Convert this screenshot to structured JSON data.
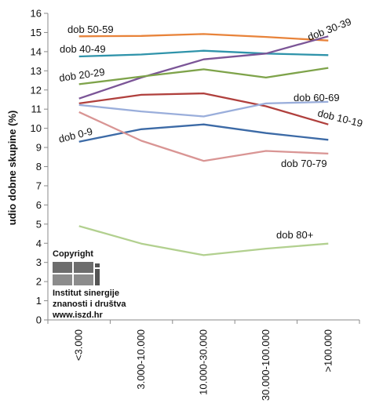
{
  "chart_data": {
    "type": "line",
    "categories": [
      "<3.000",
      "3.000-10.000",
      "10.000-30.000",
      "30.000-100.000",
      ">100.000"
    ],
    "ylabel": "udio dobne skupine (%)",
    "ylim": [
      0,
      16
    ],
    "yticks": [
      0,
      1,
      2,
      3,
      4,
      5,
      6,
      7,
      8,
      9,
      10,
      11,
      12,
      13,
      14,
      15,
      16
    ],
    "grid": false,
    "series": [
      {
        "name": "dob 50-59",
        "color": "#e8833a",
        "values": [
          14.8,
          14.82,
          14.92,
          14.77,
          14.58
        ]
      },
      {
        "name": "dob 40-49",
        "color": "#2f93aa",
        "values": [
          13.75,
          13.85,
          14.05,
          13.9,
          13.82
        ]
      },
      {
        "name": "dob 30-39",
        "color": "#7b5597",
        "values": [
          11.55,
          12.65,
          13.6,
          13.9,
          14.8
        ]
      },
      {
        "name": "dob 20-29",
        "color": "#7ea34a",
        "values": [
          12.3,
          12.7,
          13.08,
          12.65,
          13.15
        ]
      },
      {
        "name": "dob 10-19",
        "color": "#b0403d",
        "values": [
          11.3,
          11.75,
          11.82,
          11.15,
          10.2
        ]
      },
      {
        "name": "dob 60-69",
        "color": "#9aaedb",
        "values": [
          11.22,
          10.88,
          10.62,
          11.3,
          11.38
        ]
      },
      {
        "name": "dob 0-9",
        "color": "#3c6aa6",
        "values": [
          9.3,
          9.95,
          10.2,
          9.75,
          9.4
        ]
      },
      {
        "name": "dob 70-79",
        "color": "#d99594",
        "values": [
          10.85,
          9.35,
          8.3,
          8.82,
          8.68
        ]
      },
      {
        "name": "dob 80+",
        "color": "#b2d08f",
        "values": [
          4.9,
          3.98,
          3.38,
          3.72,
          3.98
        ]
      }
    ]
  },
  "copyright": {
    "title": "Copyright",
    "line1": "Institut sinergije",
    "line2": "znanosti i društva",
    "line3": "www.iszd.hr"
  }
}
